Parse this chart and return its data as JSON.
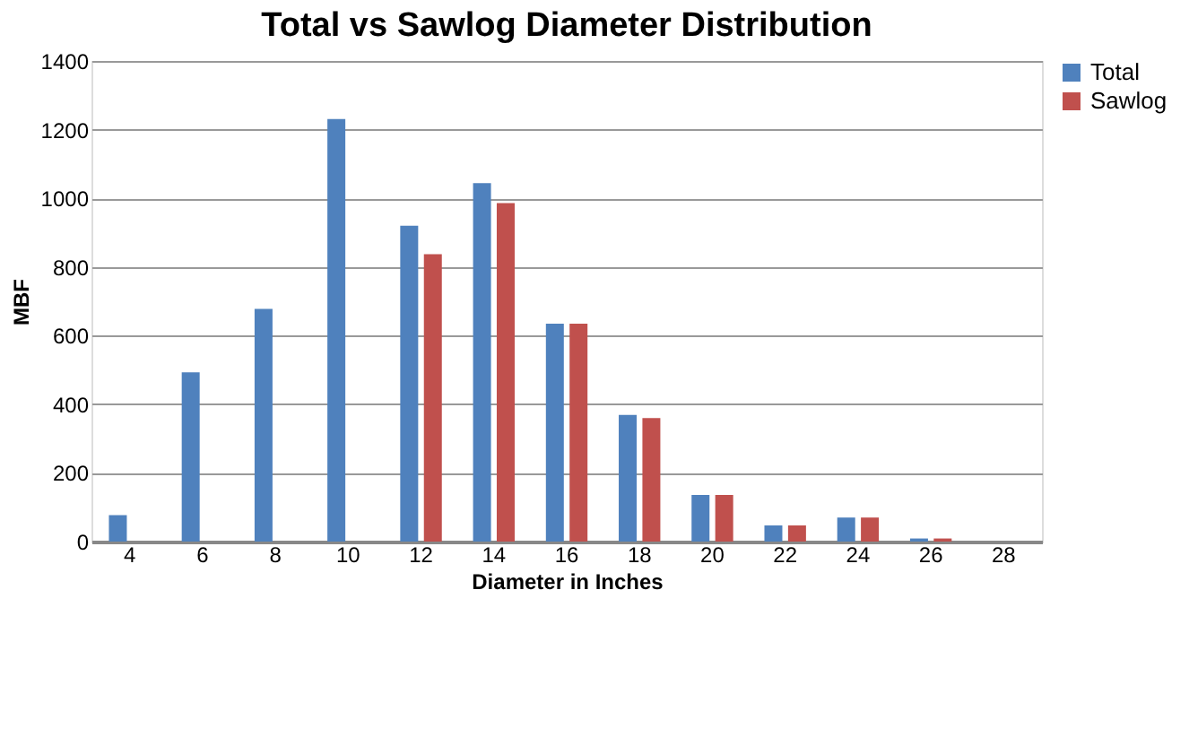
{
  "chart_data": {
    "type": "bar",
    "title": "Total vs Sawlog Diameter Distribution",
    "xlabel": "Diameter in Inches",
    "ylabel": "MBF",
    "categories": [
      "4",
      "6",
      "8",
      "10",
      "12",
      "14",
      "16",
      "18",
      "20",
      "22",
      "24",
      "26",
      "28"
    ],
    "series": [
      {
        "name": "Total",
        "color": "#4f81bd",
        "values": [
          77,
          493,
          678,
          1231,
          920,
          1044,
          635,
          369,
          136,
          47,
          70,
          9,
          0
        ]
      },
      {
        "name": "Sawlog",
        "color": "#c0504d",
        "values": [
          0,
          0,
          0,
          0,
          837,
          986,
          635,
          360,
          136,
          47,
          70,
          9,
          0
        ]
      }
    ],
    "ylim": [
      0,
      1400
    ],
    "yticks": [
      0,
      200,
      400,
      600,
      800,
      1000,
      1200,
      1400
    ],
    "grid": "y",
    "legend": "top right"
  }
}
